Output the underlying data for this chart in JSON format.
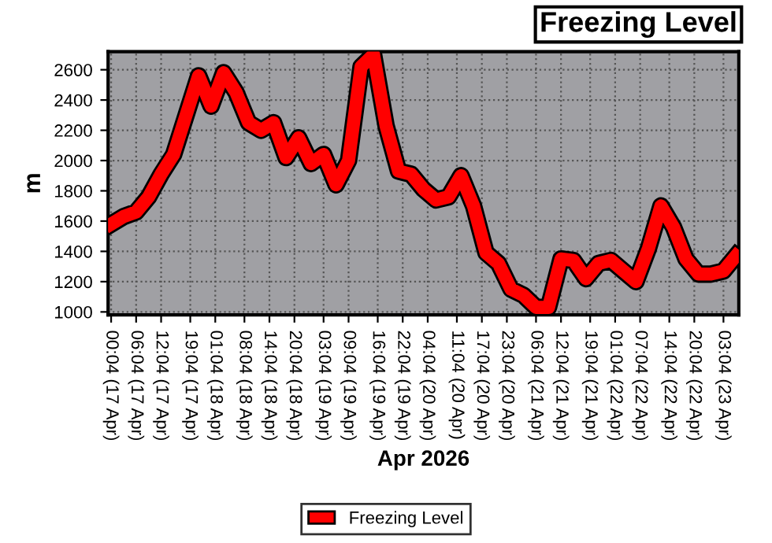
{
  "chart_data": {
    "type": "line",
    "title": "Freezing Level",
    "xlabel": "Apr 2026",
    "ylabel": "m",
    "x": [
      "2026-04-17T00:04",
      "2026-04-17T03:04",
      "2026-04-17T06:04",
      "2026-04-17T09:04",
      "2026-04-17T12:04",
      "2026-04-17T15:04",
      "2026-04-17T18:04",
      "2026-04-17T21:04",
      "2026-04-18T00:04",
      "2026-04-18T03:04",
      "2026-04-18T06:04",
      "2026-04-18T09:04",
      "2026-04-18T12:04",
      "2026-04-18T15:04",
      "2026-04-18T18:04",
      "2026-04-18T21:04",
      "2026-04-19T00:04",
      "2026-04-19T03:04",
      "2026-04-19T06:04",
      "2026-04-19T09:04",
      "2026-04-19T12:04",
      "2026-04-19T15:04",
      "2026-04-19T18:04",
      "2026-04-19T21:04",
      "2026-04-20T00:04",
      "2026-04-20T03:04",
      "2026-04-20T06:04",
      "2026-04-20T09:04",
      "2026-04-20T12:04",
      "2026-04-20T15:04",
      "2026-04-20T18:04",
      "2026-04-20T21:04",
      "2026-04-21T00:04",
      "2026-04-21T03:04",
      "2026-04-21T06:04",
      "2026-04-21T09:04",
      "2026-04-21T12:04",
      "2026-04-21T15:04",
      "2026-04-21T18:04",
      "2026-04-21T21:04",
      "2026-04-22T00:04",
      "2026-04-22T03:04",
      "2026-04-22T06:04",
      "2026-04-22T09:04",
      "2026-04-22T12:04",
      "2026-04-22T15:04",
      "2026-04-22T18:04",
      "2026-04-22T21:04",
      "2026-04-23T00:04",
      "2026-04-23T03:04",
      "2026-04-23T06:04"
    ],
    "series": [
      {
        "name": "Freezing Level",
        "color": "#ff0000",
        "values": [
          1580,
          1630,
          1660,
          1760,
          1910,
          2040,
          2300,
          2560,
          2360,
          2580,
          2450,
          2250,
          2200,
          2250,
          2020,
          2150,
          1980,
          2040,
          1840,
          2000,
          2620,
          2700,
          2230,
          1930,
          1910,
          1810,
          1740,
          1760,
          1900,
          1700,
          1390,
          1320,
          1150,
          1110,
          1030,
          1030,
          1350,
          1340,
          1220,
          1320,
          1340,
          1270,
          1200,
          1420,
          1700,
          1560,
          1350,
          1250,
          1250,
          1270,
          1370
        ]
      }
    ],
    "xlim": [
      "2026-04-16T23:20",
      "2026-04-23T06:45"
    ],
    "xticks": [
      {
        "value": "2026-04-17T00:04",
        "label": "00:04 (17 Apr)"
      },
      {
        "value": "2026-04-17T06:04",
        "label": "06:04 (17 Apr)"
      },
      {
        "value": "2026-04-17T12:04",
        "label": "12:04 (17 Apr)"
      },
      {
        "value": "2026-04-17T19:04",
        "label": "19:04 (17 Apr)"
      },
      {
        "value": "2026-04-18T01:04",
        "label": "01:04 (18 Apr)"
      },
      {
        "value": "2026-04-18T08:04",
        "label": "08:04 (18 Apr)"
      },
      {
        "value": "2026-04-18T14:04",
        "label": "14:04 (18 Apr)"
      },
      {
        "value": "2026-04-18T20:04",
        "label": "20:04 (18 Apr)"
      },
      {
        "value": "2026-04-19T03:04",
        "label": "03:04 (19 Apr)"
      },
      {
        "value": "2026-04-19T09:04",
        "label": "09:04 (19 Apr)"
      },
      {
        "value": "2026-04-19T16:04",
        "label": "16:04 (19 Apr)"
      },
      {
        "value": "2026-04-19T22:04",
        "label": "22:04 (19 Apr)"
      },
      {
        "value": "2026-04-20T04:04",
        "label": "04:04 (20 Apr)"
      },
      {
        "value": "2026-04-20T11:04",
        "label": "11:04 (20 Apr)"
      },
      {
        "value": "2026-04-20T17:04",
        "label": "17:04 (20 Apr)"
      },
      {
        "value": "2026-04-20T23:04",
        "label": "23:04 (20 Apr)"
      },
      {
        "value": "2026-04-21T06:04",
        "label": "06:04 (21 Apr)"
      },
      {
        "value": "2026-04-21T12:04",
        "label": "12:04 (21 Apr)"
      },
      {
        "value": "2026-04-21T19:04",
        "label": "19:04 (21 Apr)"
      },
      {
        "value": "2026-04-22T01:04",
        "label": "01:04 (22 Apr)"
      },
      {
        "value": "2026-04-22T07:04",
        "label": "07:04 (22 Apr)"
      },
      {
        "value": "2026-04-22T14:04",
        "label": "14:04 (22 Apr)"
      },
      {
        "value": "2026-04-22T20:04",
        "label": "20:04 (22 Apr)"
      },
      {
        "value": "2026-04-23T03:04",
        "label": "03:04 (23 Apr)"
      }
    ],
    "ylim": [
      980,
      2720
    ],
    "yticks": [
      1000,
      1200,
      1400,
      1600,
      1800,
      2000,
      2200,
      2400,
      2600
    ],
    "grid": true,
    "legend": "bottom",
    "marker": "none",
    "line_style": "solid"
  }
}
